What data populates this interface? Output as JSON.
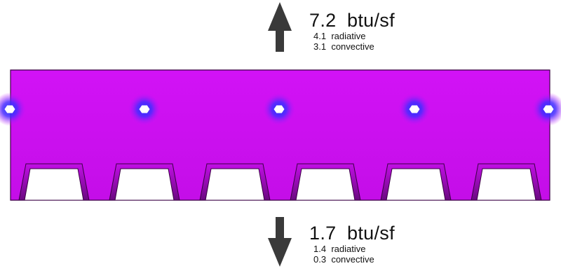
{
  "colors": {
    "slab": "#d010f4",
    "slab_edge": "#3a0044",
    "slab_shadow": "#7a0a96",
    "hot_spot": "#2a34ff",
    "arrow": "#3a3a3a"
  },
  "top_flux": {
    "direction": "up",
    "total_value": "7.2",
    "total_unit": "btu/sf",
    "radiative_value": "4.1",
    "radiative_label": "radiative",
    "convective_value": "3.1",
    "convective_label": "convective"
  },
  "bottom_flux": {
    "direction": "down",
    "total_value": "1.7",
    "total_unit": "btu/sf",
    "radiative_value": "1.4",
    "radiative_label": "radiative",
    "convective_value": "0.3",
    "convective_label": "convective"
  }
}
